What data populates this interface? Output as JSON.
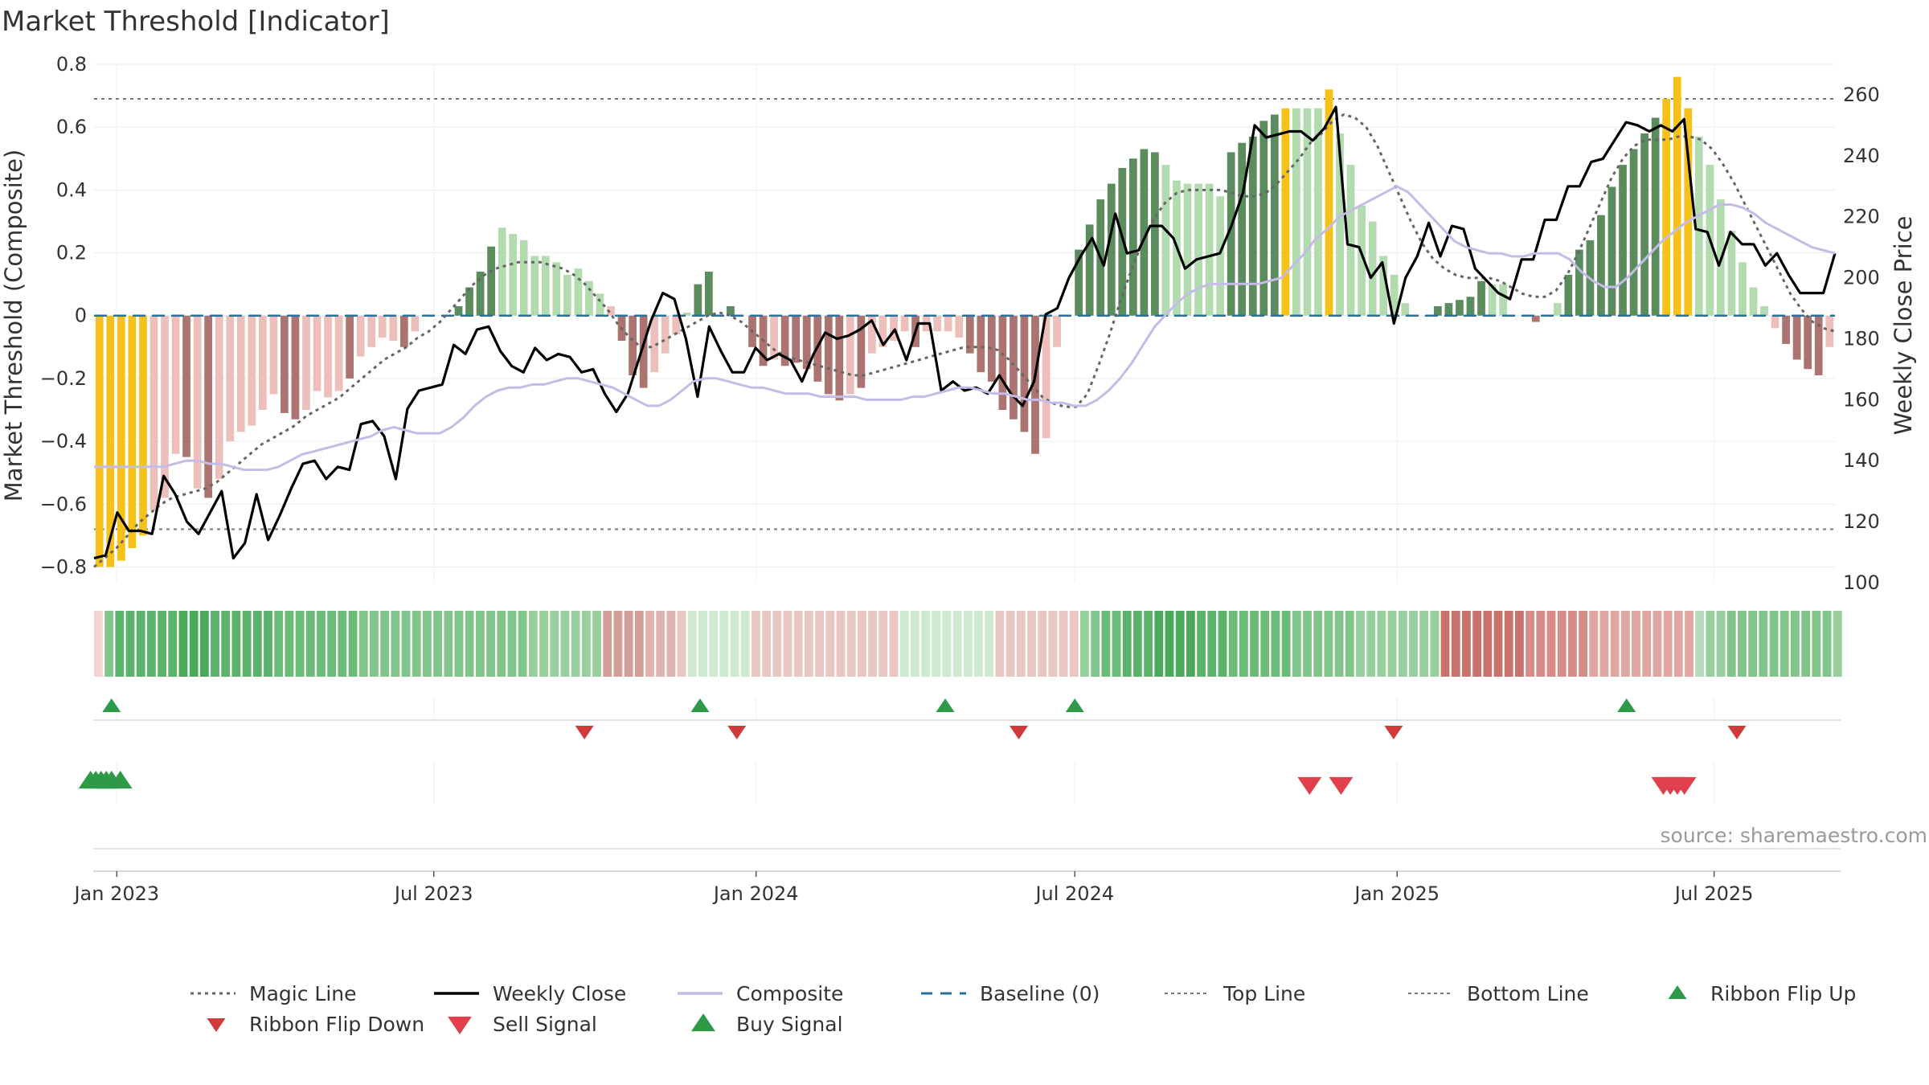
{
  "chart_data": {
    "type": "bar",
    "title": "Market Threshold [Indicator]",
    "ylabel": "Market Threshold (Composite)",
    "y2label": "Weekly Close Price",
    "ylim": [
      -0.85,
      0.8
    ],
    "y2lim": [
      100,
      270
    ],
    "yticks": [
      0.8,
      0.6,
      0.4,
      0.2,
      0,
      -0.2,
      -0.4,
      -0.6,
      -0.8
    ],
    "ytick_labels": [
      "0.8",
      "0.6",
      "0.4",
      "0.2",
      "0",
      "−0.2",
      "−0.4",
      "−0.6",
      "−0.8"
    ],
    "y2ticks": [
      260,
      240,
      220,
      200,
      180,
      160,
      140,
      120,
      100
    ],
    "x_start": "2022-12-19",
    "x_end": "2025-09-08",
    "xticks": [
      "2023-01-01",
      "2023-07-01",
      "2024-01-01",
      "2024-07-01",
      "2025-01-01",
      "2025-07-01"
    ],
    "xtick_labels": [
      "Jan 2023",
      "Jul 2023",
      "Jan 2024",
      "Jul 2024",
      "Jan 2025",
      "Jul 2025"
    ],
    "top_line": 0.69,
    "bottom_line": -0.68,
    "baseline": 0,
    "composite": [
      -0.8,
      -0.8,
      -0.78,
      -0.74,
      -0.7,
      -0.62,
      -0.58,
      -0.44,
      -0.45,
      -0.55,
      -0.58,
      -0.52,
      -0.4,
      -0.37,
      -0.35,
      -0.3,
      -0.25,
      -0.31,
      -0.33,
      -0.3,
      -0.24,
      -0.26,
      -0.24,
      -0.2,
      -0.13,
      -0.1,
      -0.07,
      -0.08,
      -0.1,
      -0.05,
      0.0,
      0.0,
      0.0,
      0.03,
      0.09,
      0.14,
      0.22,
      0.28,
      0.26,
      0.24,
      0.19,
      0.19,
      0.17,
      0.13,
      0.15,
      0.11,
      0.07,
      0.03,
      -0.08,
      -0.19,
      -0.23,
      -0.18,
      -0.12,
      -0.06,
      0.01,
      0.1,
      0.14,
      0.0,
      0.03,
      0.0,
      -0.1,
      -0.16,
      -0.14,
      -0.16,
      -0.15,
      -0.17,
      -0.21,
      -0.25,
      -0.27,
      -0.25,
      -0.23,
      -0.12,
      -0.1,
      -0.08,
      -0.05,
      -0.1,
      -0.05,
      -0.05,
      -0.05,
      -0.07,
      -0.12,
      -0.18,
      -0.21,
      -0.3,
      -0.33,
      -0.37,
      -0.44,
      -0.39,
      -0.1,
      0.0,
      0.21,
      0.29,
      0.37,
      0.42,
      0.47,
      0.5,
      0.53,
      0.52,
      0.48,
      0.43,
      0.42,
      0.42,
      0.42,
      0.38,
      0.52,
      0.55,
      0.57,
      0.62,
      0.64,
      0.66,
      0.66,
      0.66,
      0.66,
      0.72,
      0.58,
      0.48,
      0.35,
      0.3,
      0.19,
      0.13,
      0.04,
      0.0,
      0.0,
      0.03,
      0.04,
      0.05,
      0.06,
      0.11,
      0.1,
      0.1,
      0.0,
      0.0,
      -0.02,
      0.0,
      0.04,
      0.13,
      0.21,
      0.24,
      0.32,
      0.41,
      0.48,
      0.53,
      0.58,
      0.63,
      0.69,
      0.76,
      0.66,
      0.57,
      0.48,
      0.37,
      0.27,
      0.17,
      0.09,
      0.03,
      -0.04,
      -0.09,
      -0.14,
      -0.17,
      -0.19,
      -0.1
    ],
    "bar_colors": [
      "#f6c21a",
      "#f6c21a",
      "#f6c21a",
      "#f6c21a",
      "#f6c21a",
      "#ecbfba",
      "#ecbfba",
      "#ecbfba",
      "#ac7470",
      "#ecbfba",
      "#ac7470",
      "#ecbfba",
      "#ecbfba",
      "#ecbfba",
      "#ecbfba",
      "#ecbfba",
      "#ecbfba",
      "#ac7470",
      "#ac7470",
      "#ecbfba",
      "#ecbfba",
      "#ecbfba",
      "#ecbfba",
      "#ac7470",
      "#ecbfba",
      "#ecbfba",
      "#ecbfba",
      "#ecbfba",
      "#ac7470",
      "#ecbfba",
      "#ecbfba",
      "#ecbfba",
      "#ecbfba",
      "#5a8c5d",
      "#5a8c5d",
      "#5a8c5d",
      "#5a8c5d",
      "#b2dcb0",
      "#b2dcb0",
      "#b2dcb0",
      "#b2dcb0",
      "#b2dcb0",
      "#b2dcb0",
      "#b2dcb0",
      "#b2dcb0",
      "#b2dcb0",
      "#b2dcb0",
      "#ecbfba",
      "#ac7470",
      "#ac7470",
      "#ac7470",
      "#ecbfba",
      "#ecbfba",
      "#ecbfba",
      "#b2dcb0",
      "#5a8c5d",
      "#5a8c5d",
      "#ecbfba",
      "#5a8c5d",
      "#ecbfba",
      "#ac7470",
      "#ac7470",
      "#ecbfba",
      "#ac7470",
      "#ac7470",
      "#ac7470",
      "#ac7470",
      "#ac7470",
      "#ac7470",
      "#ecbfba",
      "#ac7470",
      "#ecbfba",
      "#ecbfba",
      "#ecbfba",
      "#ecbfba",
      "#ac7470",
      "#ecbfba",
      "#ecbfba",
      "#ecbfba",
      "#ecbfba",
      "#ac7470",
      "#ac7470",
      "#ac7470",
      "#ac7470",
      "#ac7470",
      "#ac7470",
      "#ac7470",
      "#ecbfba",
      "#ecbfba",
      "#ecbfba",
      "#5a8c5d",
      "#5a8c5d",
      "#5a8c5d",
      "#5a8c5d",
      "#5a8c5d",
      "#5a8c5d",
      "#5a8c5d",
      "#5a8c5d",
      "#b2dcb0",
      "#b2dcb0",
      "#b2dcb0",
      "#b2dcb0",
      "#b2dcb0",
      "#b2dcb0",
      "#5a8c5d",
      "#5a8c5d",
      "#5a8c5d",
      "#5a8c5d",
      "#5a8c5d",
      "#f6c21a",
      "#b2dcb0",
      "#b2dcb0",
      "#b2dcb0",
      "#f6c21a",
      "#b2dcb0",
      "#b2dcb0",
      "#b2dcb0",
      "#b2dcb0",
      "#b2dcb0",
      "#b2dcb0",
      "#b2dcb0",
      "#b2dcb0",
      "#b2dcb0",
      "#5a8c5d",
      "#5a8c5d",
      "#5a8c5d",
      "#5a8c5d",
      "#5a8c5d",
      "#b2dcb0",
      "#b2dcb0",
      "#b2dcb0",
      "#b2dcb0",
      "#ac7470",
      "#ecbfba",
      "#b2dcb0",
      "#5a8c5d",
      "#5a8c5d",
      "#5a8c5d",
      "#5a8c5d",
      "#5a8c5d",
      "#5a8c5d",
      "#5a8c5d",
      "#5a8c5d",
      "#5a8c5d",
      "#f6c21a",
      "#f6c21a",
      "#f6c21a",
      "#b2dcb0",
      "#b2dcb0",
      "#b2dcb0",
      "#b2dcb0",
      "#b2dcb0",
      "#b2dcb0",
      "#b2dcb0",
      "#ecbfba",
      "#ac7470",
      "#ac7470",
      "#ac7470",
      "#ac7470",
      "#ecbfba"
    ],
    "ribbon_colors": [
      "#f3d6d3",
      "#82c58a",
      "#5cb26a",
      "#5cb26a",
      "#5cb26a",
      "#5cb26a",
      "#5cb26a",
      "#5cb26a",
      "#4ca95c",
      "#4ca95c",
      "#4ca95c",
      "#5cb26a",
      "#5cb26a",
      "#5cb26a",
      "#5cb26a",
      "#5cb26a",
      "#5cb26a",
      "#6cbb78",
      "#6cbb78",
      "#6cbb78",
      "#6cbb78",
      "#6cbb78",
      "#6cbb78",
      "#6cbb78",
      "#6cbb78",
      "#82c58a",
      "#82c58a",
      "#82c58a",
      "#82c58a",
      "#82c58a",
      "#82c58a",
      "#82c58a",
      "#82c58a",
      "#82c58a",
      "#82c58a",
      "#82c58a",
      "#82c58a",
      "#82c58a",
      "#82c58a",
      "#82c58a",
      "#82c58a",
      "#97cf9d",
      "#97cf9d",
      "#97cf9d",
      "#97cf9d",
      "#97cf9d",
      "#97cf9d",
      "#97cf9d",
      "#d39d98",
      "#d39d98",
      "#d39d98",
      "#d39d98",
      "#dfb3af",
      "#dfb3af",
      "#dfb3af",
      "#e8c6c2",
      "#cfe8d0",
      "#cfe8d0",
      "#cfe8d0",
      "#cfe8d0",
      "#cfe8d0",
      "#cfe8d0",
      "#e8c6c2",
      "#e8c6c2",
      "#e8c6c2",
      "#e8c6c2",
      "#e8c6c2",
      "#e8c6c2",
      "#e8c6c2",
      "#e8c6c2",
      "#e8c6c2",
      "#e8c6c2",
      "#e8c6c2",
      "#e8c6c2",
      "#e8c6c2",
      "#e8c6c2",
      "#cfe8d0",
      "#cfe8d0",
      "#cfe8d0",
      "#cfe8d0",
      "#cfe8d0",
      "#cfe8d0",
      "#cfe8d0",
      "#cfe8d0",
      "#cfe8d0",
      "#e8c6c2",
      "#e8c6c2",
      "#e8c6c2",
      "#e8c6c2",
      "#e8c6c2",
      "#e8c6c2",
      "#e8c6c2",
      "#e8c6c2",
      "#97cf9d",
      "#82c58a",
      "#6cbb78",
      "#6cbb78",
      "#5cb26a",
      "#5cb26a",
      "#5cb26a",
      "#4ca95c",
      "#4ca95c",
      "#4ca95c",
      "#4ca95c",
      "#5cb26a",
      "#5cb26a",
      "#5cb26a",
      "#6cbb78",
      "#6cbb78",
      "#6cbb78",
      "#6cbb78",
      "#6cbb78",
      "#6cbb78",
      "#82c58a",
      "#82c58a",
      "#82c58a",
      "#82c58a",
      "#82c58a",
      "#82c58a",
      "#97cf9d",
      "#97cf9d",
      "#97cf9d",
      "#97cf9d",
      "#97cf9d",
      "#97cf9d",
      "#97cf9d",
      "#97cf9d",
      "#c8736d",
      "#c8736d",
      "#c8736d",
      "#c8736d",
      "#c8736d",
      "#c8736d",
      "#c8736d",
      "#c8736d",
      "#d68d88",
      "#d68d88",
      "#d68d88",
      "#d68d88",
      "#d68d88",
      "#d68d88",
      "#dfa6a2",
      "#dfa6a2",
      "#dfa6a2",
      "#dfa6a2",
      "#dfa6a2",
      "#dfa6a2",
      "#dfa6a2",
      "#dfa6a2",
      "#dfa6a2",
      "#dfa6a2",
      "#b5dcb8",
      "#97cf9d",
      "#97cf9d",
      "#82c58a",
      "#82c58a",
      "#82c58a",
      "#82c58a",
      "#82c58a",
      "#82c58a",
      "#82c58a",
      "#82c58a",
      "#82c58a",
      "#82c58a",
      "#97cf9d",
      "#97cf9d",
      "#97cf9d",
      "#97cf9d",
      "#97cf9d",
      "#97cf9d",
      "#dfa6a2",
      "#dfa6a2",
      "#d68d88",
      "#d68d88",
      "#d68d88",
      "#c8736d",
      "#c8736d",
      "#c8736d",
      "#c8736d",
      "#c8736d",
      "#c8736d",
      "#c8736d",
      "#c8736d"
    ],
    "ribbon_count": 165,
    "series": [
      {
        "name": "Magic Line",
        "axis": "left",
        "style": "dotted",
        "color": "#666666",
        "values": [
          -0.8,
          -0.77,
          -0.74,
          -0.7,
          -0.66,
          -0.63,
          -0.6,
          -0.58,
          -0.57,
          -0.56,
          -0.55,
          -0.53,
          -0.5,
          -0.47,
          -0.44,
          -0.41,
          -0.39,
          -0.37,
          -0.35,
          -0.32,
          -0.3,
          -0.28,
          -0.26,
          -0.23,
          -0.2,
          -0.17,
          -0.14,
          -0.12,
          -0.1,
          -0.07,
          -0.05,
          -0.02,
          0.02,
          0.06,
          0.1,
          0.13,
          0.15,
          0.16,
          0.17,
          0.17,
          0.17,
          0.16,
          0.15,
          0.13,
          0.1,
          0.06,
          0.02,
          -0.03,
          -0.07,
          -0.1,
          -0.1,
          -0.08,
          -0.06,
          -0.04,
          -0.02,
          0.0,
          0.01,
          0.0,
          -0.02,
          -0.05,
          -0.08,
          -0.11,
          -0.13,
          -0.14,
          -0.15,
          -0.16,
          -0.17,
          -0.18,
          -0.19,
          -0.19,
          -0.18,
          -0.17,
          -0.16,
          -0.15,
          -0.14,
          -0.13,
          -0.12,
          -0.11,
          -0.1,
          -0.1,
          -0.1,
          -0.11,
          -0.14,
          -0.18,
          -0.22,
          -0.26,
          -0.28,
          -0.29,
          -0.29,
          -0.25,
          -0.16,
          -0.06,
          0.05,
          0.15,
          0.24,
          0.31,
          0.36,
          0.39,
          0.4,
          0.4,
          0.4,
          0.4,
          0.39,
          0.38,
          0.38,
          0.39,
          0.42,
          0.46,
          0.5,
          0.55,
          0.58,
          0.62,
          0.64,
          0.63,
          0.6,
          0.54,
          0.46,
          0.38,
          0.3,
          0.23,
          0.18,
          0.15,
          0.13,
          0.12,
          0.12,
          0.12,
          0.11,
          0.09,
          0.07,
          0.06,
          0.06,
          0.08,
          0.13,
          0.2,
          0.28,
          0.36,
          0.44,
          0.5,
          0.54,
          0.56,
          0.56,
          0.56,
          0.57,
          0.57,
          0.56,
          0.53,
          0.48,
          0.42,
          0.35,
          0.28,
          0.21,
          0.14,
          0.07,
          0.02,
          -0.02,
          -0.04,
          -0.05
        ]
      },
      {
        "name": "Weekly Close",
        "axis": "right",
        "style": "solid",
        "color": "#000000",
        "values": [
          108,
          109,
          123,
          117,
          117,
          116,
          135,
          129,
          120,
          116,
          123,
          130,
          108,
          113,
          129,
          114,
          122,
          131,
          139,
          140,
          134,
          138,
          137,
          152,
          153,
          148,
          134,
          157,
          163,
          164,
          165,
          178,
          175,
          183,
          184,
          176,
          171,
          169,
          177,
          173,
          175,
          174,
          169,
          170,
          162,
          156,
          162,
          174,
          186,
          195,
          193,
          180,
          161,
          184,
          176,
          169,
          169,
          177,
          173,
          175,
          173,
          166,
          175,
          182,
          180,
          181,
          183,
          186,
          178,
          183,
          173,
          185,
          185,
          163,
          166,
          163,
          164,
          162,
          168,
          162,
          158,
          166,
          188,
          190,
          200,
          207,
          213,
          204,
          221,
          208,
          209,
          217,
          217,
          213,
          203,
          206,
          207,
          208,
          217,
          228,
          250,
          246,
          247,
          248,
          248,
          245,
          249,
          256,
          211,
          210,
          200,
          205,
          185,
          200,
          207,
          218,
          207,
          217,
          216,
          203,
          199,
          195,
          193,
          206,
          206,
          219,
          219,
          230,
          230,
          238,
          239,
          245,
          251,
          250,
          248,
          250,
          248,
          252,
          216,
          215,
          204,
          215,
          211,
          211,
          204,
          208,
          201,
          195,
          195,
          195,
          208
        ]
      },
      {
        "name": "Composite",
        "axis": "right",
        "style": "solid",
        "color": "#c4bce6",
        "values": [
          138,
          138,
          138,
          138,
          138,
          138,
          138,
          139,
          140,
          140,
          139,
          139,
          138,
          137,
          137,
          137,
          138,
          140,
          142,
          143,
          144,
          145,
          146,
          147,
          148,
          150,
          151,
          150,
          149,
          149,
          149,
          151,
          154,
          158,
          161,
          163,
          164,
          164,
          165,
          165,
          166,
          167,
          167,
          166,
          165,
          164,
          162,
          160,
          158,
          158,
          160,
          163,
          166,
          167,
          167,
          166,
          165,
          164,
          164,
          163,
          162,
          162,
          162,
          161,
          161,
          161,
          161,
          160,
          160,
          160,
          160,
          161,
          161,
          162,
          163,
          164,
          164,
          163,
          162,
          162,
          161,
          160,
          160,
          159,
          159,
          158,
          158,
          160,
          163,
          167,
          172,
          178,
          184,
          188,
          192,
          195,
          197,
          198,
          198,
          198,
          198,
          198,
          199,
          200,
          204,
          208,
          213,
          216,
          220,
          222,
          224,
          226,
          228,
          230,
          228,
          224,
          220,
          216,
          212,
          210,
          209,
          208,
          208,
          207,
          207,
          208,
          208,
          208,
          206,
          202,
          199,
          197,
          197,
          200,
          204,
          208,
          212,
          215,
          218,
          220,
          222,
          224,
          224,
          223,
          221,
          218,
          216,
          214,
          212,
          210,
          209,
          208
        ]
      }
    ],
    "ribbon_flip_up": [
      "2022-12-29",
      "2023-11-30",
      "2024-04-18",
      "2024-07-01",
      "2025-05-12"
    ],
    "ribbon_flip_down": [
      "2023-09-25",
      "2023-12-21",
      "2024-05-30",
      "2024-12-30",
      "2025-07-14"
    ],
    "buy_signal": [
      "2022-12-17",
      "2022-12-20",
      "2022-12-23",
      "2022-12-26",
      "2022-12-29",
      "2023-01-03"
    ],
    "sell_signal": [
      "2024-11-12",
      "2024-11-30",
      "2025-06-02",
      "2025-06-06",
      "2025-06-10",
      "2025-06-14"
    ],
    "legend": [
      {
        "label": "Magic Line",
        "kind": "dotted",
        "color": "#666666"
      },
      {
        "label": "Weekly Close",
        "kind": "solid",
        "color": "#000000"
      },
      {
        "label": "Composite",
        "kind": "solid",
        "color": "#c4bce6"
      },
      {
        "label": "Baseline (0)",
        "kind": "dashed",
        "color": "#2b6f9c"
      },
      {
        "label": "Top Line",
        "kind": "finedot",
        "color": "#777777"
      },
      {
        "label": "Bottom Line",
        "kind": "finedot",
        "color": "#777777"
      },
      {
        "label": "Ribbon Flip Up",
        "kind": "tri-up-small",
        "color": "#2e9a47"
      },
      {
        "label": "Ribbon Flip Down",
        "kind": "tri-down-small",
        "color": "#d03a3a"
      },
      {
        "label": "Sell Signal",
        "kind": "tri-down",
        "color": "#e0404c"
      },
      {
        "label": "Buy Signal",
        "kind": "tri-up",
        "color": "#2e9a47"
      }
    ],
    "legend_position": "bottom",
    "source": "source: sharemaestro.com"
  }
}
